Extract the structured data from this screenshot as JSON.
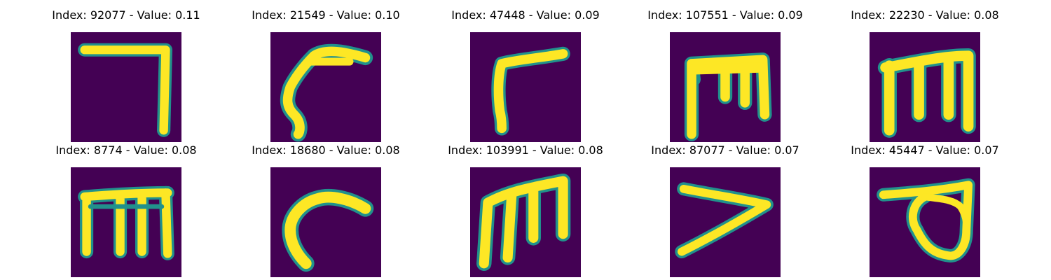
{
  "panels": [
    {
      "title": "Index: 92077 - Value: 0.11",
      "glyph": "hook-icon"
    },
    {
      "title": "Index: 21549 - Value: 0.10",
      "glyph": "curved-stroke-icon"
    },
    {
      "title": "Index: 47448 - Value: 0.09",
      "glyph": "r-shape-icon"
    },
    {
      "title": "Index: 107551 - Value: 0.09",
      "glyph": "m-shape-icon"
    },
    {
      "title": "Index: 22230 - Value: 0.08",
      "glyph": "m-shape-icon"
    },
    {
      "title": "Index: 8774 - Value: 0.08",
      "glyph": "m-shape-icon"
    },
    {
      "title": "Index: 18680 - Value: 0.08",
      "glyph": "c-shape-icon"
    },
    {
      "title": "Index: 103991 - Value: 0.08",
      "glyph": "m-shape-icon"
    },
    {
      "title": "Index: 87077 - Value: 0.07",
      "glyph": "greater-than-icon"
    },
    {
      "title": "Index: 45447 - Value: 0.07",
      "glyph": "loop-shape-icon"
    }
  ],
  "colors": {
    "background": "#440154",
    "stroke": "#fde725",
    "edge": "#21918c"
  }
}
